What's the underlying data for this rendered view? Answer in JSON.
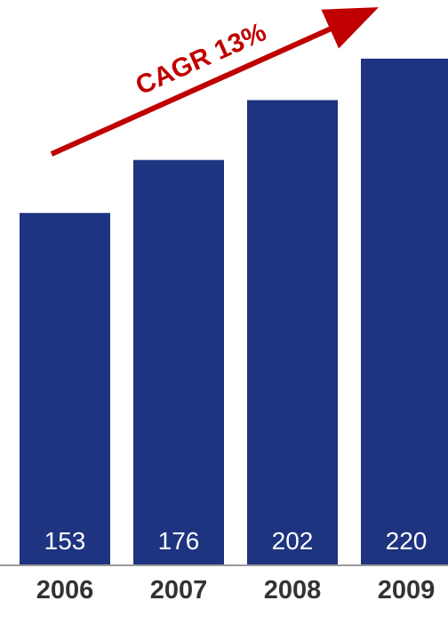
{
  "chart_data": {
    "type": "bar",
    "categories": [
      "2006",
      "2007",
      "2008",
      "2009"
    ],
    "values": [
      153,
      176,
      202,
      220
    ],
    "value_labels": [
      "153",
      "176",
      "202",
      "220"
    ],
    "title": "",
    "xlabel": "",
    "ylabel": "",
    "ylim": [
      0,
      230
    ],
    "grid": false,
    "legend": "none",
    "annotation": {
      "text": "CAGR 13%",
      "style": "upward arrow above bars"
    },
    "colors": {
      "bar": "#1e3480",
      "arrow": "#c00000",
      "value_text": "#ffffff",
      "tick_text": "#333333",
      "axis": "#999999"
    }
  }
}
